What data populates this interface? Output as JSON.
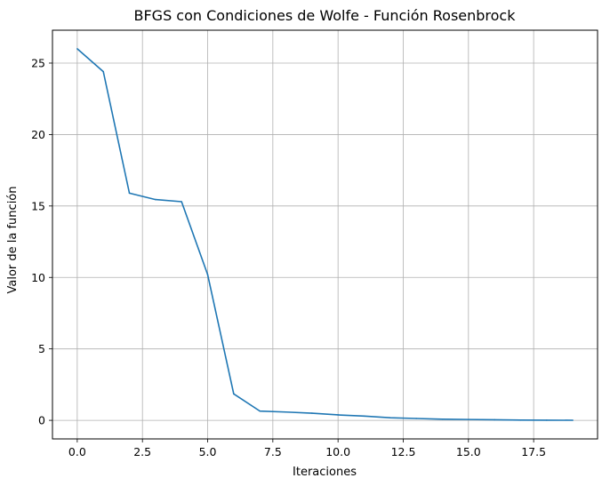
{
  "chart_data": {
    "type": "line",
    "title": "BFGS con Condiciones de Wolfe - Función Rosenbrock",
    "xlabel": "Iteraciones",
    "ylabel": "Valor de la función",
    "xlim": [
      -0.95,
      19.95
    ],
    "ylim": [
      -1.3,
      27.3
    ],
    "xticks": [
      0.0,
      2.5,
      5.0,
      7.5,
      10.0,
      12.5,
      15.0,
      17.5
    ],
    "xtick_labels": [
      "0.0",
      "2.5",
      "5.0",
      "7.5",
      "10.0",
      "12.5",
      "15.0",
      "17.5"
    ],
    "yticks": [
      0,
      5,
      10,
      15,
      20,
      25
    ],
    "ytick_labels": [
      "0",
      "5",
      "10",
      "15",
      "20",
      "25"
    ],
    "grid": true,
    "series": [
      {
        "color": "#1f77b4",
        "x": [
          0,
          1,
          2,
          3,
          4,
          5,
          6,
          7,
          8,
          9,
          10,
          11,
          12,
          13,
          14,
          15,
          16,
          17,
          18,
          19
        ],
        "y": [
          26.0,
          24.4,
          15.9,
          15.45,
          15.3,
          10.2,
          1.85,
          0.65,
          0.58,
          0.5,
          0.38,
          0.3,
          0.18,
          0.13,
          0.08,
          0.06,
          0.04,
          0.02,
          0.01,
          0.005
        ]
      }
    ]
  }
}
